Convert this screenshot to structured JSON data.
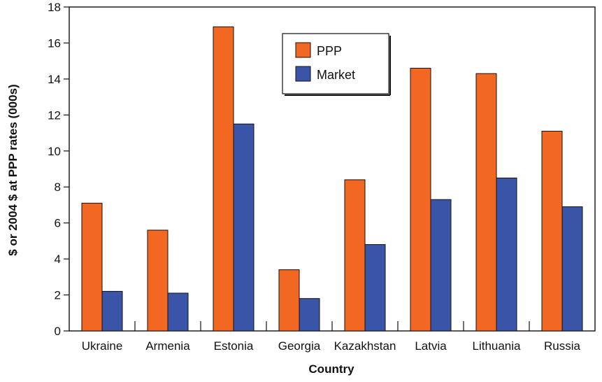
{
  "chart_data": {
    "type": "bar",
    "xlabel": "Country",
    "ylabel": "$ or 2004 $ at PPP rates (000s)",
    "categories": [
      "Ukraine",
      "Armenia",
      "Estonia",
      "Georgia",
      "Kazakhstan",
      "Latvia",
      "Lithuania",
      "Russia"
    ],
    "series": [
      {
        "name": "PPP",
        "color": "#f26722",
        "values": [
          7.1,
          5.6,
          16.9,
          3.4,
          8.4,
          14.6,
          14.3,
          11.1
        ]
      },
      {
        "name": "Market",
        "color": "#3a55a8",
        "values": [
          2.2,
          2.1,
          11.5,
          1.8,
          4.8,
          7.3,
          8.5,
          6.9
        ]
      }
    ],
    "ylim": [
      0,
      18
    ],
    "yticks": [
      0,
      2,
      4,
      6,
      8,
      10,
      12,
      14,
      16,
      18
    ],
    "grid": false,
    "legend": "top-center"
  }
}
